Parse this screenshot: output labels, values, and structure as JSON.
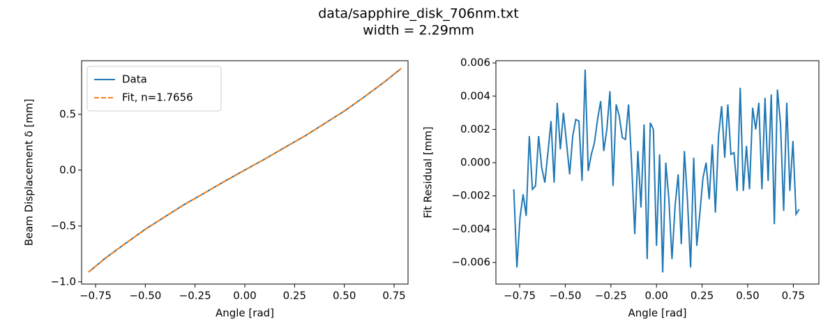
{
  "title": "data/sapphire_disk_706nm.txt",
  "subtitle": "width = 2.29mm",
  "chart_data": [
    {
      "type": "line",
      "x_label": "Angle [rad]",
      "y_label": "Beam Displacement δ [mm]",
      "x": [
        -0.785,
        -0.7,
        -0.6,
        -0.5,
        -0.4,
        -0.3,
        -0.2,
        -0.1,
        0,
        0.1,
        0.2,
        0.3,
        0.4,
        0.5,
        0.6,
        0.7,
        0.785
      ],
      "series": [
        {
          "name": "Data",
          "color": "#1f77b4",
          "linestyle": "solid",
          "values": [
            -0.913,
            -0.787,
            -0.657,
            -0.529,
            -0.416,
            -0.303,
            -0.202,
            -0.098,
            0.001,
            0.099,
            0.203,
            0.304,
            0.417,
            0.529,
            0.656,
            0.788,
            0.909
          ]
        },
        {
          "name": "Fit, n=1.7656",
          "color": "#ff7f0e",
          "linestyle": "dashed",
          "values": [
            -0.911,
            -0.789,
            -0.655,
            -0.531,
            -0.415,
            -0.305,
            -0.201,
            -0.1,
            0,
            0.1,
            0.201,
            0.305,
            0.415,
            0.531,
            0.655,
            0.789,
            0.911
          ]
        }
      ],
      "legend": "upper left",
      "xlim": [
        -0.82,
        0.82
      ],
      "ylim": [
        -1.02,
        0.98
      ],
      "xticks": [
        {
          "value": -0.75,
          "label": "−0.75"
        },
        {
          "value": -0.5,
          "label": "−0.50"
        },
        {
          "value": -0.25,
          "label": "−0.25"
        },
        {
          "value": 0,
          "label": "0.00"
        },
        {
          "value": 0.25,
          "label": "0.25"
        },
        {
          "value": 0.5,
          "label": "0.50"
        },
        {
          "value": 0.75,
          "label": "0.75"
        }
      ],
      "yticks": [
        {
          "value": -1,
          "label": "−1.0"
        },
        {
          "value": -0.5,
          "label": "−0.5"
        },
        {
          "value": 0,
          "label": "0.0"
        },
        {
          "value": 0.5,
          "label": "0.5"
        }
      ]
    },
    {
      "type": "line",
      "x_label": "Angle [rad]",
      "y_label": "Fit Residual [mm]",
      "x": [
        -0.782,
        -0.765,
        -0.748,
        -0.731,
        -0.714,
        -0.697,
        -0.68,
        -0.663,
        -0.646,
        -0.629,
        -0.612,
        -0.595,
        -0.578,
        -0.561,
        -0.544,
        -0.527,
        -0.51,
        -0.493,
        -0.476,
        -0.459,
        -0.442,
        -0.425,
        -0.408,
        -0.391,
        -0.374,
        -0.357,
        -0.34,
        -0.323,
        -0.306,
        -0.289,
        -0.272,
        -0.255,
        -0.238,
        -0.221,
        -0.204,
        -0.187,
        -0.17,
        -0.153,
        -0.136,
        -0.119,
        -0.102,
        -0.085,
        -0.068,
        -0.051,
        -0.034,
        -0.017,
        0,
        0.017,
        0.034,
        0.051,
        0.068,
        0.085,
        0.102,
        0.119,
        0.136,
        0.153,
        0.17,
        0.187,
        0.204,
        0.221,
        0.238,
        0.255,
        0.272,
        0.289,
        0.306,
        0.323,
        0.34,
        0.357,
        0.374,
        0.391,
        0.408,
        0.425,
        0.442,
        0.459,
        0.476,
        0.493,
        0.51,
        0.527,
        0.544,
        0.561,
        0.578,
        0.595,
        0.612,
        0.629,
        0.646,
        0.663,
        0.68,
        0.697,
        0.714,
        0.731,
        0.748,
        0.765,
        0.782
      ],
      "color": "#1f77b4",
      "values": [
        -0.0016,
        -0.0063,
        -0.0033,
        -0.0019,
        -0.0032,
        0.0016,
        -0.0016,
        -0.0014,
        0.0016,
        -0.0003,
        -0.0012,
        0.0006,
        0.0025,
        -0.0012,
        0.0036,
        0.0008,
        0.003,
        0.0012,
        -0.0007,
        0.0016,
        0.0026,
        0.0025,
        -0.0011,
        0.0056,
        -0.0005,
        0.0005,
        0.0012,
        0.0026,
        0.0037,
        0.0007,
        0.002,
        0.0043,
        -0.0014,
        0.0035,
        0.0028,
        0.0015,
        0.0014,
        0.0035,
        -0.0001,
        -0.0043,
        0.0007,
        -0.0027,
        0.0023,
        -0.0058,
        0.0024,
        0.002,
        -0.005,
        0.0005,
        -0.0066,
        0,
        -0.0022,
        -0.0058,
        -0.0026,
        -0.0007,
        -0.0049,
        0.0007,
        -0.0023,
        -0.0063,
        0.0003,
        -0.005,
        -0.003,
        -0.0009,
        0,
        -0.0022,
        0.0011,
        -0.003,
        0.0016,
        0.0034,
        0.0003,
        0.0035,
        0.0005,
        0.0006,
        -0.0017,
        0.0045,
        -0.0017,
        0.001,
        -0.0016,
        0.0033,
        0.002,
        0.0036,
        -0.0016,
        0.0039,
        -0.0011,
        0.0041,
        -0.0037,
        0.0044,
        0.0023,
        -0.0029,
        0.0036,
        -0.0017,
        0.0013,
        -0.0031,
        -0.0028
      ],
      "xlim": [
        -0.88,
        0.89
      ],
      "ylim": [
        -0.0073,
        0.00613
      ],
      "xticks": [
        {
          "value": -0.75,
          "label": "−0.75"
        },
        {
          "value": -0.5,
          "label": "−0.50"
        },
        {
          "value": -0.25,
          "label": "−0.25"
        },
        {
          "value": 0,
          "label": "0.00"
        },
        {
          "value": 0.25,
          "label": "0.25"
        },
        {
          "value": 0.5,
          "label": "0.50"
        },
        {
          "value": 0.75,
          "label": "0.75"
        }
      ],
      "yticks": [
        {
          "value": -0.006,
          "label": "−0.006"
        },
        {
          "value": -0.004,
          "label": "−0.004"
        },
        {
          "value": -0.002,
          "label": "−0.002"
        },
        {
          "value": 0,
          "label": "0.000"
        },
        {
          "value": 0.002,
          "label": "0.002"
        },
        {
          "value": 0.004,
          "label": "0.004"
        },
        {
          "value": 0.006,
          "label": "0.006"
        }
      ]
    }
  ]
}
